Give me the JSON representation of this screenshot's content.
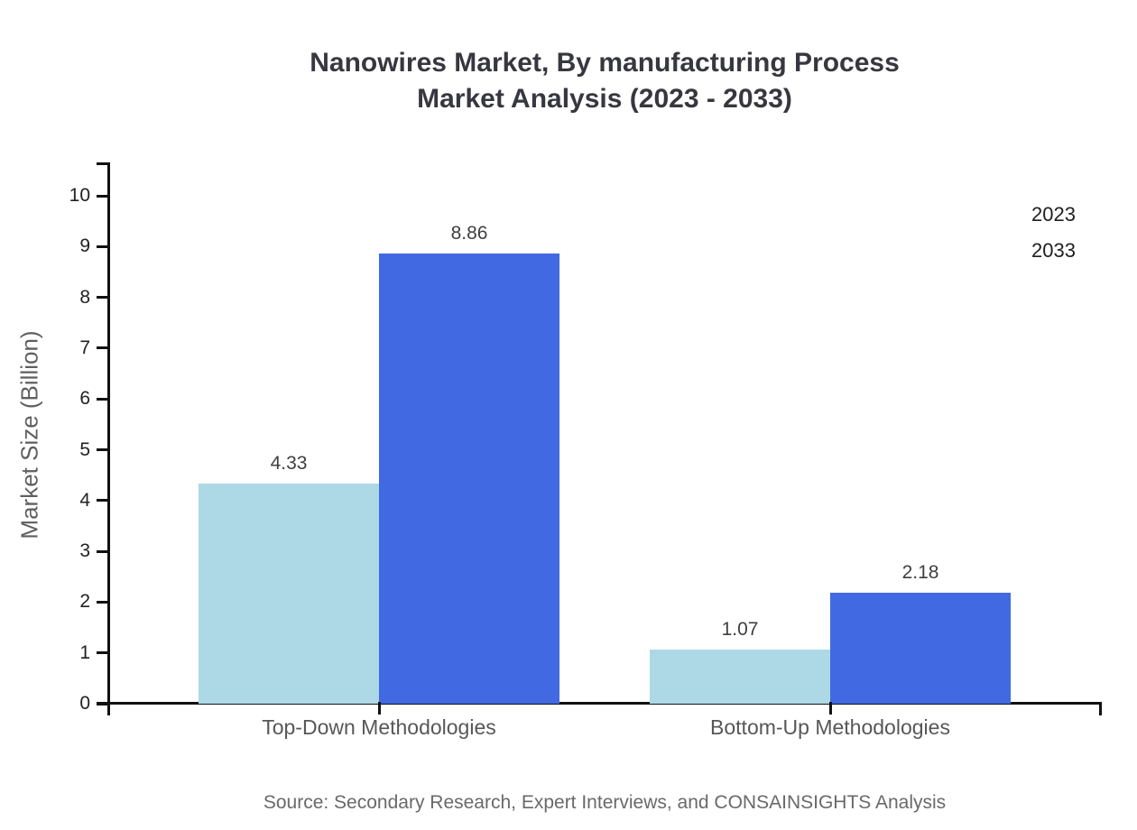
{
  "title": {
    "line1": "Nanowires Market, By manufacturing Process",
    "line2": "Market Analysis (2023 - 2033)"
  },
  "source": "Source: Secondary Research, Expert Interviews, and CONSAINSIGHTS Analysis",
  "legend": {
    "items": [
      {
        "label": "2023",
        "color": "#ADD8E6"
      },
      {
        "label": "2033",
        "color": "#4169E1"
      }
    ]
  },
  "chart_data": {
    "type": "bar",
    "categories": [
      "Top-Down Methodologies",
      "Bottom-Up Methodologies"
    ],
    "series": [
      {
        "name": "2023",
        "color": "#ADD8E6",
        "values": [
          4.33,
          1.07
        ],
        "data_labels": [
          "4.33",
          "1.07"
        ]
      },
      {
        "name": "2033",
        "color": "#4169E1",
        "values": [
          8.86,
          2.18
        ],
        "data_labels": [
          "8.86",
          "2.18"
        ]
      }
    ],
    "title": "Nanowires Market, By manufacturing Process Market Analysis (2023 - 2033)",
    "xlabel": "",
    "ylabel": "Market Size (Billion)",
    "ylim": [
      0,
      10
    ],
    "yticks": [
      0,
      1,
      2,
      3,
      4,
      5,
      6,
      7,
      8,
      9,
      10
    ],
    "grid": false,
    "legend_position": "top-right"
  }
}
